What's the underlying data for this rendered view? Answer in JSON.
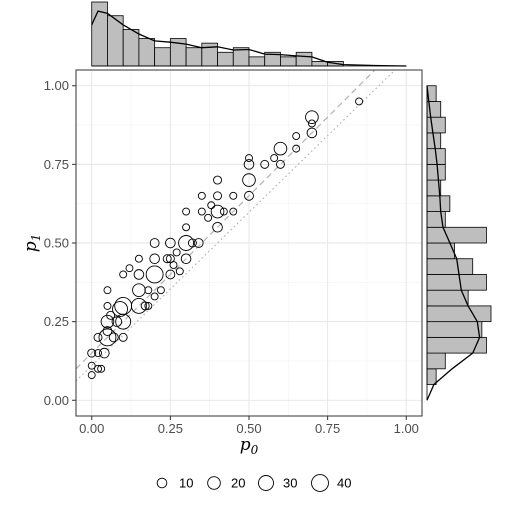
{
  "chart_data": {
    "type": "scatter",
    "title": "",
    "xlabel": "p",
    "xlabel_sub": "0",
    "ylabel": "p",
    "ylabel_sub": "1",
    "xlim": [
      -0.05,
      1.05
    ],
    "ylim": [
      -0.05,
      1.05
    ],
    "x_ticks": [
      "0.00",
      "0.25",
      "0.50",
      "0.75",
      "1.00"
    ],
    "y_ticks": [
      "0.00",
      "0.25",
      "0.50",
      "0.75",
      "1.00"
    ],
    "grid": true,
    "point_color": "#000000",
    "reference_lines": [
      {
        "style": "dashed",
        "color": "#b3b3b3",
        "intercept": 0.15,
        "slope": 1.0
      },
      {
        "style": "dotted",
        "color": "#b3b3b3",
        "intercept": 0.11,
        "slope": 0.975
      }
    ],
    "points": [
      {
        "x": 0.0,
        "y": 0.08,
        "size": 4
      },
      {
        "x": 0.0,
        "y": 0.11,
        "size": 4
      },
      {
        "x": 0.0,
        "y": 0.15,
        "size": 6
      },
      {
        "x": 0.02,
        "y": 0.15,
        "size": 4
      },
      {
        "x": 0.02,
        "y": 0.1,
        "size": 4
      },
      {
        "x": 0.03,
        "y": 0.1,
        "size": 4
      },
      {
        "x": 0.02,
        "y": 0.2,
        "size": 6
      },
      {
        "x": 0.04,
        "y": 0.15,
        "size": 10
      },
      {
        "x": 0.05,
        "y": 0.2,
        "size": 40
      },
      {
        "x": 0.05,
        "y": 0.22,
        "size": 8
      },
      {
        "x": 0.05,
        "y": 0.25,
        "size": 20
      },
      {
        "x": 0.05,
        "y": 0.3,
        "size": 4
      },
      {
        "x": 0.05,
        "y": 0.35,
        "size": 4
      },
      {
        "x": 0.06,
        "y": 0.27,
        "size": 6
      },
      {
        "x": 0.07,
        "y": 0.2,
        "size": 8
      },
      {
        "x": 0.08,
        "y": 0.25,
        "size": 10
      },
      {
        "x": 0.09,
        "y": 0.29,
        "size": 30
      },
      {
        "x": 0.1,
        "y": 0.3,
        "size": 40
      },
      {
        "x": 0.1,
        "y": 0.25,
        "size": 30
      },
      {
        "x": 0.1,
        "y": 0.2,
        "size": 6
      },
      {
        "x": 0.1,
        "y": 0.4,
        "size": 4
      },
      {
        "x": 0.12,
        "y": 0.42,
        "size": 4
      },
      {
        "x": 0.15,
        "y": 0.3,
        "size": 30
      },
      {
        "x": 0.15,
        "y": 0.35,
        "size": 20
      },
      {
        "x": 0.15,
        "y": 0.4,
        "size": 10
      },
      {
        "x": 0.15,
        "y": 0.45,
        "size": 4
      },
      {
        "x": 0.17,
        "y": 0.3,
        "size": 6
      },
      {
        "x": 0.18,
        "y": 0.3,
        "size": 4
      },
      {
        "x": 0.18,
        "y": 0.35,
        "size": 4
      },
      {
        "x": 0.2,
        "y": 0.4,
        "size": 40
      },
      {
        "x": 0.2,
        "y": 0.45,
        "size": 10
      },
      {
        "x": 0.2,
        "y": 0.5,
        "size": 8
      },
      {
        "x": 0.2,
        "y": 0.33,
        "size": 4
      },
      {
        "x": 0.22,
        "y": 0.35,
        "size": 4
      },
      {
        "x": 0.24,
        "y": 0.45,
        "size": 6
      },
      {
        "x": 0.25,
        "y": 0.4,
        "size": 8
      },
      {
        "x": 0.25,
        "y": 0.45,
        "size": 6
      },
      {
        "x": 0.25,
        "y": 0.5,
        "size": 10
      },
      {
        "x": 0.26,
        "y": 0.43,
        "size": 4
      },
      {
        "x": 0.27,
        "y": 0.47,
        "size": 4
      },
      {
        "x": 0.28,
        "y": 0.41,
        "size": 4
      },
      {
        "x": 0.3,
        "y": 0.5,
        "size": 30
      },
      {
        "x": 0.3,
        "y": 0.45,
        "size": 10
      },
      {
        "x": 0.3,
        "y": 0.55,
        "size": 4
      },
      {
        "x": 0.3,
        "y": 0.6,
        "size": 4
      },
      {
        "x": 0.32,
        "y": 0.5,
        "size": 6
      },
      {
        "x": 0.34,
        "y": 0.5,
        "size": 8
      },
      {
        "x": 0.35,
        "y": 0.6,
        "size": 4
      },
      {
        "x": 0.35,
        "y": 0.65,
        "size": 4
      },
      {
        "x": 0.37,
        "y": 0.58,
        "size": 4
      },
      {
        "x": 0.38,
        "y": 0.62,
        "size": 4
      },
      {
        "x": 0.4,
        "y": 0.6,
        "size": 20
      },
      {
        "x": 0.4,
        "y": 0.55,
        "size": 10
      },
      {
        "x": 0.4,
        "y": 0.65,
        "size": 6
      },
      {
        "x": 0.4,
        "y": 0.7,
        "size": 6
      },
      {
        "x": 0.42,
        "y": 0.6,
        "size": 4
      },
      {
        "x": 0.45,
        "y": 0.6,
        "size": 4
      },
      {
        "x": 0.45,
        "y": 0.65,
        "size": 4
      },
      {
        "x": 0.5,
        "y": 0.7,
        "size": 20
      },
      {
        "x": 0.5,
        "y": 0.65,
        "size": 8
      },
      {
        "x": 0.5,
        "y": 0.75,
        "size": 10
      },
      {
        "x": 0.5,
        "y": 0.77,
        "size": 4
      },
      {
        "x": 0.55,
        "y": 0.75,
        "size": 6
      },
      {
        "x": 0.58,
        "y": 0.77,
        "size": 4
      },
      {
        "x": 0.6,
        "y": 0.8,
        "size": 20
      },
      {
        "x": 0.6,
        "y": 0.75,
        "size": 6
      },
      {
        "x": 0.65,
        "y": 0.8,
        "size": 4
      },
      {
        "x": 0.65,
        "y": 0.84,
        "size": 4
      },
      {
        "x": 0.7,
        "y": 0.9,
        "size": 20
      },
      {
        "x": 0.7,
        "y": 0.85,
        "size": 10
      },
      {
        "x": 0.7,
        "y": 0.88,
        "size": 4
      },
      {
        "x": 0.85,
        "y": 0.95,
        "size": 4
      }
    ],
    "legend": {
      "placement": "bottom",
      "sizes": [
        10,
        20,
        30,
        40
      ],
      "labels": [
        "10",
        "20",
        "30",
        "40"
      ]
    },
    "marginal_top": {
      "type": "histogram-with-density",
      "bin_width": 0.05,
      "bins_start": 0.0,
      "counts": [
        14,
        11,
        8,
        6,
        4,
        6,
        4,
        5,
        3,
        4,
        2,
        3,
        2,
        3,
        1,
        1,
        0,
        0,
        0,
        0
      ],
      "density": [
        [
          0.0,
          9
        ],
        [
          0.02,
          12
        ],
        [
          0.05,
          11.5
        ],
        [
          0.1,
          9
        ],
        [
          0.15,
          7
        ],
        [
          0.2,
          5.5
        ],
        [
          0.25,
          5.2
        ],
        [
          0.3,
          4.8
        ],
        [
          0.35,
          4
        ],
        [
          0.4,
          4.2
        ],
        [
          0.45,
          3.5
        ],
        [
          0.5,
          3.6
        ],
        [
          0.55,
          2.6
        ],
        [
          0.6,
          2.5
        ],
        [
          0.65,
          2.2
        ],
        [
          0.7,
          2.0
        ],
        [
          0.75,
          0.8
        ],
        [
          0.8,
          0.3
        ],
        [
          0.9,
          0.1
        ],
        [
          1.0,
          0.0
        ]
      ],
      "fill": "#bebebe"
    },
    "marginal_right": {
      "type": "histogram-with-density",
      "bin_width": 0.05,
      "bins_start": 0.05,
      "counts": [
        2,
        4,
        13,
        12,
        14,
        9,
        13,
        10,
        6,
        13,
        4,
        5,
        3,
        4,
        4,
        3,
        4,
        3,
        2,
        0
      ],
      "density": [
        [
          0.0,
          0.0
        ],
        [
          0.05,
          1.5
        ],
        [
          0.1,
          5.5
        ],
        [
          0.15,
          10
        ],
        [
          0.2,
          11.5
        ],
        [
          0.25,
          11
        ],
        [
          0.3,
          9
        ],
        [
          0.35,
          7.5
        ],
        [
          0.4,
          7
        ],
        [
          0.45,
          6.5
        ],
        [
          0.5,
          5
        ],
        [
          0.55,
          3.5
        ],
        [
          0.6,
          3
        ],
        [
          0.65,
          2.8
        ],
        [
          0.7,
          2.5
        ],
        [
          0.75,
          2.2
        ],
        [
          0.8,
          1.8
        ],
        [
          0.85,
          1.3
        ],
        [
          0.9,
          0.8
        ],
        [
          0.95,
          0.4
        ],
        [
          1.0,
          0.0
        ]
      ],
      "fill": "#bebebe"
    }
  }
}
